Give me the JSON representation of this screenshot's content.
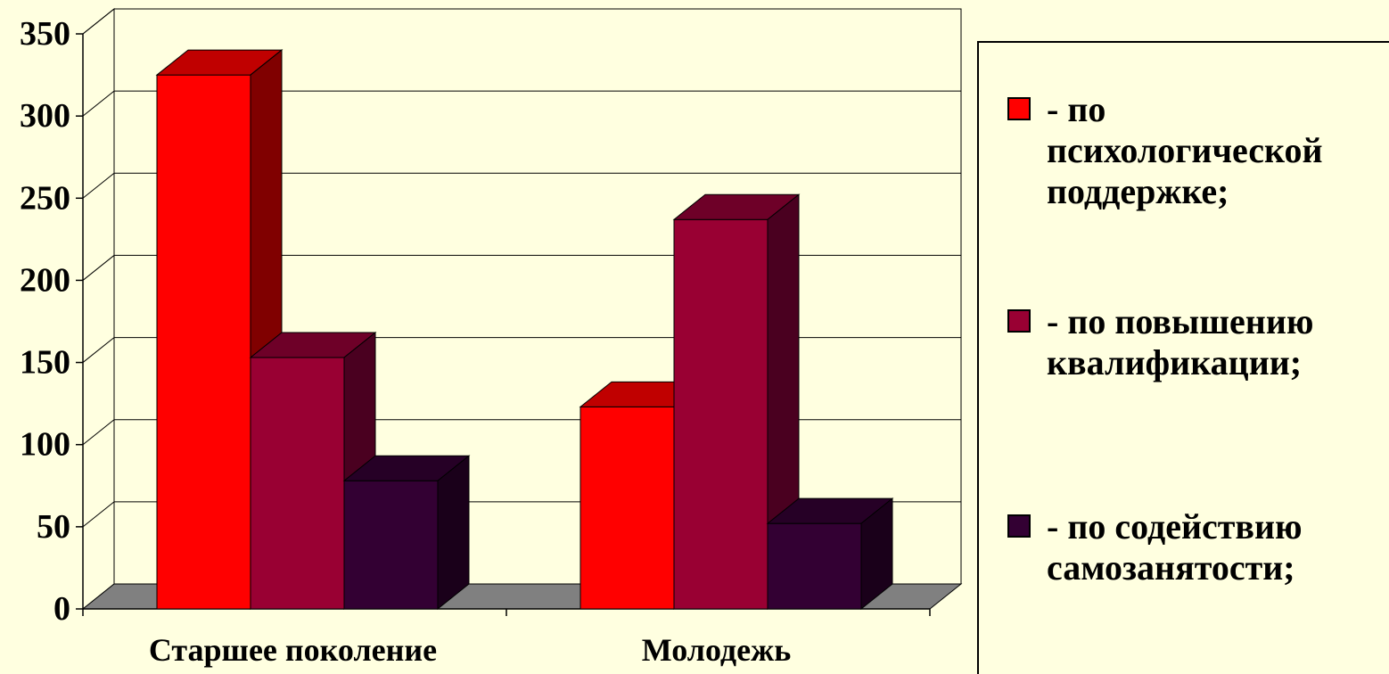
{
  "chart_data": {
    "type": "bar",
    "categories": [
      "Старшее поколение",
      "Молодежь"
    ],
    "series": [
      {
        "name": "- по психологической поддержке;",
        "values": [
          325,
          123
        ],
        "color": "#FF0000",
        "top_color": "#C00000",
        "side_color": "#800000"
      },
      {
        "name": "- по повышению квалификации;",
        "values": [
          153,
          237
        ],
        "color": "#990033",
        "top_color": "#6E0028",
        "side_color": "#4A0020"
      },
      {
        "name": "- по содействию самозанятости;",
        "values": [
          78,
          52
        ],
        "color": "#330033",
        "top_color": "#260026",
        "side_color": "#1A001A"
      }
    ],
    "yticks": [
      "0",
      "50",
      "100",
      "150",
      "200",
      "250",
      "300",
      "350"
    ],
    "ylim": [
      0,
      350
    ],
    "grid": true,
    "legend_position": "right",
    "floor_color": "#808080"
  }
}
